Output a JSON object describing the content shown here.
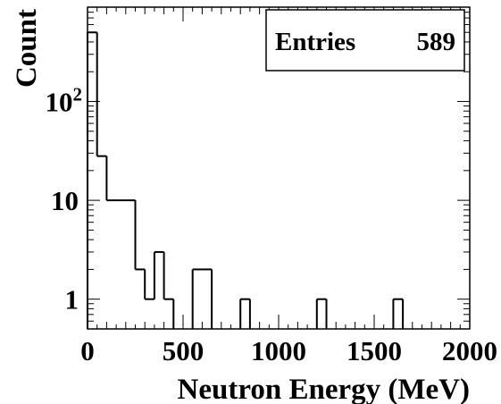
{
  "chart_data": {
    "type": "bar",
    "subtype": "histogram-step",
    "xlabel": "Neutron Energy (MeV)",
    "ylabel": "Count",
    "xlim": [
      0,
      2000
    ],
    "ylim": [
      0.5,
      900
    ],
    "yscale": "log",
    "grid": false,
    "x_ticks": [
      {
        "value": 0,
        "label": "0"
      },
      {
        "value": 500,
        "label": "500"
      },
      {
        "value": 1000,
        "label": "1000"
      },
      {
        "value": 1500,
        "label": "1500"
      },
      {
        "value": 2000,
        "label": "2000"
      }
    ],
    "y_ticks": [
      {
        "value": 1,
        "label": "1",
        "sup": ""
      },
      {
        "value": 10,
        "label": "10",
        "sup": ""
      },
      {
        "value": 100,
        "label": "10",
        "sup": "2"
      }
    ],
    "bin_width": 50,
    "bin_edges_start": 0,
    "values": [
      500,
      28,
      10,
      10,
      10,
      2,
      1,
      3,
      1,
      0,
      0,
      2,
      2,
      0,
      0,
      0,
      1,
      0,
      0,
      0,
      0,
      0,
      0,
      0,
      1,
      0,
      0,
      0,
      0,
      0,
      0,
      0,
      1,
      0,
      0,
      0,
      0,
      0,
      0,
      0
    ],
    "stats_box": {
      "label": "Entries",
      "value": "589",
      "position": "top-right"
    }
  }
}
